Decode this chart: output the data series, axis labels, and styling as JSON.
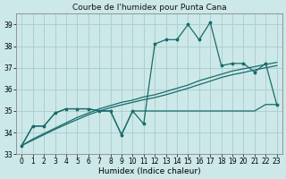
{
  "title": "Courbe de l'humidex pour Punta Cana",
  "xlabel": "Humidex (Indice chaleur)",
  "background_color": "#cce8e8",
  "grid_color": "#aacccc",
  "line_color": "#1a6b6b",
  "x_values": [
    0,
    1,
    2,
    3,
    4,
    5,
    6,
    7,
    8,
    9,
    10,
    11,
    12,
    13,
    14,
    15,
    16,
    17,
    18,
    19,
    20,
    21,
    22,
    23
  ],
  "y_main": [
    33.4,
    34.3,
    34.3,
    34.9,
    35.1,
    35.1,
    35.1,
    35.0,
    35.0,
    33.9,
    35.0,
    34.4,
    38.1,
    38.3,
    38.3,
    39.0,
    38.3,
    39.1,
    37.1,
    37.2,
    37.2,
    36.8,
    37.2,
    35.3
  ],
  "y_trend1": [
    33.4,
    33.7,
    33.95,
    34.2,
    34.45,
    34.7,
    34.9,
    35.1,
    35.25,
    35.4,
    35.5,
    35.65,
    35.75,
    35.9,
    36.05,
    36.2,
    36.4,
    36.55,
    36.7,
    36.85,
    36.95,
    37.05,
    37.15,
    37.25
  ],
  "y_trend2": [
    33.4,
    33.65,
    33.9,
    34.15,
    34.38,
    34.6,
    34.82,
    35.0,
    35.15,
    35.28,
    35.4,
    35.52,
    35.62,
    35.75,
    35.9,
    36.05,
    36.22,
    36.38,
    36.55,
    36.68,
    36.78,
    36.9,
    37.0,
    37.1
  ],
  "y_flat": [
    33.4,
    34.3,
    34.3,
    34.9,
    35.1,
    35.1,
    35.1,
    35.0,
    35.0,
    33.9,
    35.0,
    35.0,
    35.0,
    35.0,
    35.0,
    35.0,
    35.0,
    35.0,
    35.0,
    35.0,
    35.0,
    35.0,
    35.3,
    35.3
  ],
  "ylim": [
    33,
    39.5
  ],
  "xlim": [
    -0.5,
    23.5
  ],
  "yticks": [
    33,
    34,
    35,
    36,
    37,
    38,
    39
  ],
  "xticks": [
    0,
    1,
    2,
    3,
    4,
    5,
    6,
    7,
    8,
    9,
    10,
    11,
    12,
    13,
    14,
    15,
    16,
    17,
    18,
    19,
    20,
    21,
    22,
    23
  ],
  "title_fontsize": 6.5,
  "label_fontsize": 6.5,
  "tick_fontsize": 5.5
}
